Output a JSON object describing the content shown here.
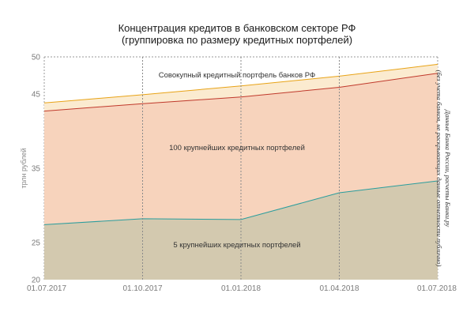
{
  "chart_data": {
    "type": "area",
    "title_lines": [
      "Концентрация кредитов в банковском секторе РФ",
      "(группировка по размеру кредитных портфелей)"
    ],
    "ylabel": "трлн рублей",
    "ylim": [
      20,
      50
    ],
    "yticks": [
      "20",
      "25",
      "35",
      "45",
      "50"
    ],
    "ytick_values": [
      20,
      25,
      35,
      45,
      50
    ],
    "x": [
      "01.07.2017",
      "01.10.2017",
      "01.01.2018",
      "01.04.2018",
      "01.07.2018"
    ],
    "series": [
      {
        "name": "5 крупнейших кредитных портфелей",
        "values": [
          27.4,
          28.2,
          28.1,
          31.7,
          33.3
        ],
        "fill": "#d3c9af",
        "stroke": "#2a9d9d"
      },
      {
        "name": "100 крупнейших кредитных портфелей",
        "values": [
          42.7,
          43.7,
          44.6,
          45.9,
          47.8
        ],
        "fill": "#f7d3bc",
        "stroke": "#c0392b"
      },
      {
        "name": "Совокупный кредитный портфель банков РФ",
        "values": [
          43.8,
          44.9,
          46.1,
          47.4,
          49.0
        ],
        "fill": "#fbebd0",
        "stroke": "#e8a317"
      }
    ],
    "annotations": {
      "total": "Совокупный кредитный портфель банков РФ",
      "top100": "100 крупнейших кредитных портфелей",
      "top5": "5 крупнейших кредитных портфелей"
    },
    "source_lines": [
      "Данные Банка России, расчеты Банки.ру",
      "(без учета банков, не раскрывающих данные отчетности публично)"
    ],
    "grid": "vertical-dashed",
    "legend": "none"
  }
}
